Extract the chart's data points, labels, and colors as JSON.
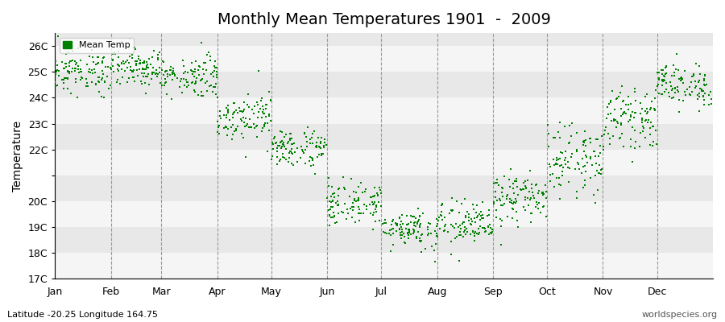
{
  "title": "Monthly Mean Temperatures 1901  -  2009",
  "ylabel": "Temperature",
  "subtitle_left": "Latitude -20.25 Longitude 164.75",
  "subtitle_right": "worldspecies.org",
  "legend_label": "Mean Temp",
  "dot_color": "#008000",
  "background_color": "#FFFFFF",
  "plot_bg_color": "#E8E8E8",
  "plot_bg_alt_color": "#F5F5F5",
  "ylim": [
    17.0,
    26.5
  ],
  "yticks": [
    17,
    18,
    19,
    20,
    21,
    22,
    23,
    24,
    25,
    26
  ],
  "ytick_labels": [
    "17C",
    "18C",
    "19C",
    "20C",
    "",
    "22C",
    "23C",
    "24C",
    "25C",
    "26C"
  ],
  "months": [
    "Jan",
    "Feb",
    "Mar",
    "Apr",
    "May",
    "Jun",
    "Jul",
    "Aug",
    "Sep",
    "Oct",
    "Nov",
    "Dec"
  ],
  "month_days": [
    31,
    28,
    31,
    30,
    31,
    30,
    31,
    31,
    30,
    31,
    30,
    31
  ],
  "monthly_means": [
    25.0,
    25.2,
    24.85,
    23.3,
    22.05,
    19.9,
    18.95,
    19.1,
    20.1,
    21.6,
    23.2,
    24.5
  ],
  "monthly_stds": [
    0.42,
    0.38,
    0.4,
    0.45,
    0.38,
    0.42,
    0.38,
    0.45,
    0.48,
    0.65,
    0.55,
    0.42
  ],
  "n_years": 109,
  "dot_size": 3,
  "dashed_line_color": "#999999",
  "title_fontsize": 14,
  "axis_fontsize": 10,
  "tick_fontsize": 9
}
